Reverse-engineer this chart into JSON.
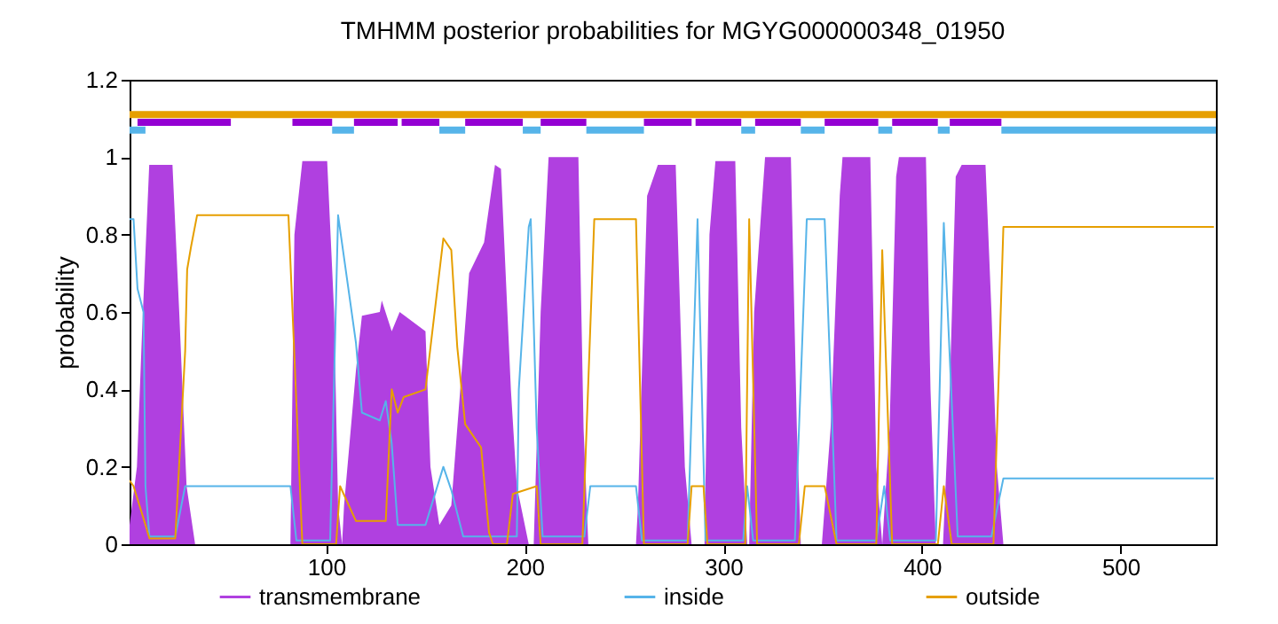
{
  "chart_data": {
    "type": "line",
    "title": "TMHMM posterior probabilities for MGYG000000348_01950",
    "ylabel": "probability",
    "xlim": [
      1,
      548
    ],
    "xticks": [
      100,
      200,
      300,
      400,
      500
    ],
    "ylim": [
      0,
      1.2
    ],
    "yticks": [
      0,
      0.2,
      0.4,
      0.6,
      0.8,
      1,
      1.2
    ],
    "grid": false,
    "legend": "bottom",
    "series": [
      {
        "name": "transmembrane",
        "type": "area",
        "color": "#b040e0",
        "x": [
          1,
          4.7,
          7.3,
          10.9,
          22.6,
          26,
          29.7,
          34,
          82,
          84,
          88,
          100.5,
          104,
          106,
          108,
          109,
          115,
          118,
          127,
          128,
          133,
          137,
          150,
          152.5,
          157,
          163,
          172,
          179.5,
          185,
          188,
          193,
          196,
          202,
          204.5,
          208,
          212,
          227,
          229.6,
          232,
          256,
          257,
          261.6,
          267,
          276,
          280.6,
          284,
          290.5,
          293,
          296,
          306,
          309,
          312,
          313,
          315.5,
          321,
          334,
          337,
          339,
          349.6,
          354,
          358.6,
          360,
          374,
          377,
          380,
          383.7,
          387,
          388.4,
          402,
          404.3,
          407,
          410.6,
          414,
          417,
          420,
          432,
          435,
          437.7,
          441,
          548
        ],
        "values": [
          0.05,
          0.2,
          0.55,
          0.98,
          0.98,
          0.6,
          0.15,
          0,
          0,
          0.8,
          0.99,
          0.99,
          0.6,
          0.1,
          0,
          0.1,
          0.45,
          0.59,
          0.6,
          0.63,
          0.55,
          0.6,
          0.55,
          0.2,
          0.05,
          0.1,
          0.7,
          0.78,
          0.98,
          0.97,
          0.4,
          0.15,
          0,
          0,
          0.6,
          1.0,
          1.0,
          0.3,
          0,
          0,
          0.1,
          0.9,
          0.98,
          0.98,
          0.2,
          0,
          0,
          0.8,
          0.99,
          0.99,
          0.3,
          0,
          0,
          0.6,
          1.0,
          1.0,
          0.3,
          0,
          0,
          0.3,
          0.9,
          1.0,
          1.0,
          0.2,
          0,
          0.3,
          0.95,
          1.0,
          1.0,
          0.4,
          0,
          0,
          0.4,
          0.95,
          0.98,
          0.98,
          0.6,
          0.2,
          0,
          0
        ]
      },
      {
        "name": "inside",
        "color": "#56b4e9",
        "x": [
          1,
          3,
          5,
          8,
          9,
          11,
          24,
          29,
          82,
          85,
          102,
          106,
          112,
          115,
          118,
          127,
          130,
          133,
          136,
          150,
          159,
          163,
          169,
          196,
          197,
          202,
          203,
          206,
          209,
          230,
          233,
          256,
          259,
          282,
          287,
          291,
          310,
          312,
          315,
          336,
          342,
          351,
          357,
          377,
          381,
          384,
          407,
          411,
          418,
          435,
          441,
          547
        ],
        "values": [
          0.84,
          0.84,
          0.66,
          0.6,
          0.15,
          0.02,
          0.02,
          0.15,
          0.15,
          0.01,
          0.01,
          0.85,
          0.63,
          0.52,
          0.34,
          0.32,
          0.37,
          0.26,
          0.05,
          0.05,
          0.2,
          0.14,
          0.02,
          0.02,
          0.4,
          0.82,
          0.84,
          0.3,
          0.02,
          0.02,
          0.15,
          0.15,
          0.01,
          0.01,
          0.84,
          0.01,
          0.01,
          0.15,
          0.01,
          0.01,
          0.84,
          0.84,
          0.01,
          0.01,
          0.15,
          0.01,
          0.01,
          0.83,
          0.02,
          0.02,
          0.17,
          0.17
        ]
      },
      {
        "name": "outside",
        "color": "#e69f00",
        "x": [
          1,
          3,
          9,
          11,
          24,
          29,
          30,
          32,
          35,
          81,
          88,
          105,
          107,
          115,
          130,
          133,
          136,
          139,
          150,
          159,
          163,
          166,
          170,
          178,
          182,
          184,
          191,
          194,
          206,
          208,
          229,
          235,
          256,
          260,
          282,
          284,
          290,
          292,
          311,
          313,
          317,
          338,
          341,
          351,
          357,
          377,
          380,
          385,
          408,
          411,
          415,
          436,
          441,
          547
        ],
        "values": [
          0.165,
          0.15,
          0.05,
          0.015,
          0.015,
          0.5,
          0.71,
          0.77,
          0.85,
          0.85,
          0,
          0,
          0.15,
          0.06,
          0.06,
          0.4,
          0.34,
          0.38,
          0.4,
          0.79,
          0.76,
          0.51,
          0.31,
          0.25,
          0.03,
          0,
          0,
          0.13,
          0.15,
          0,
          0,
          0.84,
          0.84,
          0,
          0,
          0.15,
          0.15,
          0,
          0,
          0.84,
          0,
          0,
          0.15,
          0.15,
          0,
          0,
          0.76,
          0,
          0,
          0.15,
          0,
          0,
          0.82,
          0.82
        ]
      },
      {
        "color": "#e69f00",
        "x": [
          1,
          548
        ],
        "values": [
          1.11,
          1.11
        ]
      },
      {
        "color": "#56b4e9",
        "x": [
          1,
          9
        ],
        "values": [
          1.07,
          1.07
        ]
      },
      {
        "color": "#56b4e9",
        "x": [
          103,
          114
        ],
        "values": [
          1.07,
          1.07
        ]
      },
      {
        "color": "#56b4e9",
        "x": [
          157,
          170
        ],
        "values": [
          1.07,
          1.07
        ]
      },
      {
        "color": "#56b4e9",
        "x": [
          199,
          208
        ],
        "values": [
          1.07,
          1.07
        ]
      },
      {
        "color": "#56b4e9",
        "x": [
          231,
          260
        ],
        "values": [
          1.07,
          1.07
        ]
      },
      {
        "color": "#56b4e9",
        "x": [
          309,
          316
        ],
        "values": [
          1.07,
          1.07
        ]
      },
      {
        "color": "#56b4e9",
        "x": [
          339,
          351
        ],
        "values": [
          1.07,
          1.07
        ]
      },
      {
        "color": "#56b4e9",
        "x": [
          378,
          385
        ],
        "values": [
          1.07,
          1.07
        ]
      },
      {
        "color": "#56b4e9",
        "x": [
          408,
          414
        ],
        "values": [
          1.07,
          1.07
        ]
      },
      {
        "color": "#56b4e9",
        "x": [
          440,
          548
        ],
        "values": [
          1.07,
          1.07
        ]
      },
      {
        "color": "#9400d3",
        "x": [
          5,
          52
        ],
        "values": [
          1.09,
          1.09
        ]
      },
      {
        "color": "#9400d3",
        "x": [
          83,
          103
        ],
        "values": [
          1.09,
          1.09
        ]
      },
      {
        "color": "#9400d3",
        "x": [
          114,
          136
        ],
        "values": [
          1.09,
          1.09
        ]
      },
      {
        "color": "#9400d3",
        "x": [
          138,
          157
        ],
        "values": [
          1.09,
          1.09
        ]
      },
      {
        "color": "#9400d3",
        "x": [
          170,
          199
        ],
        "values": [
          1.09,
          1.09
        ]
      },
      {
        "color": "#9400d3",
        "x": [
          208,
          231
        ],
        "values": [
          1.09,
          1.09
        ]
      },
      {
        "color": "#9400d3",
        "x": [
          260,
          284
        ],
        "values": [
          1.09,
          1.09
        ]
      },
      {
        "color": "#9400d3",
        "x": [
          286,
          309
        ],
        "values": [
          1.09,
          1.09
        ]
      },
      {
        "color": "#9400d3",
        "x": [
          316,
          339
        ],
        "values": [
          1.09,
          1.09
        ]
      },
      {
        "color": "#9400d3",
        "x": [
          351,
          378
        ],
        "values": [
          1.09,
          1.09
        ]
      },
      {
        "color": "#9400d3",
        "x": [
          385,
          408
        ],
        "values": [
          1.09,
          1.09
        ]
      },
      {
        "color": "#9400d3",
        "x": [
          414,
          440
        ],
        "values": [
          1.09,
          1.09
        ]
      }
    ]
  }
}
